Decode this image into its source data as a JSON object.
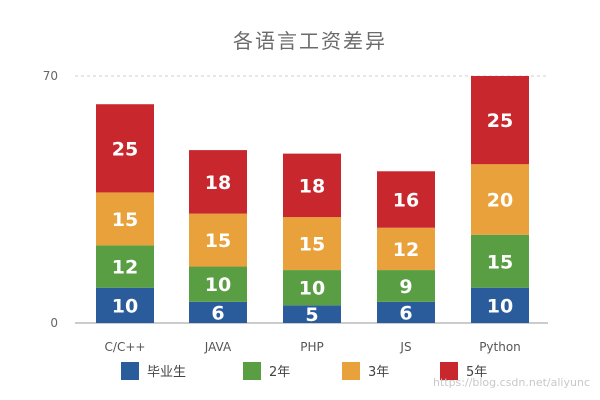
{
  "chart_data": {
    "type": "bar",
    "stacked": true,
    "title": "各语言工资差异",
    "categories": [
      "C/C++",
      "JAVA",
      "PHP",
      "JS",
      "Python"
    ],
    "series": [
      {
        "name": "毕业生",
        "color": "#2a5b9b",
        "values": [
          10,
          6,
          5,
          6,
          10
        ]
      },
      {
        "name": "2年",
        "color": "#5a9e44",
        "values": [
          12,
          10,
          10,
          9,
          15
        ]
      },
      {
        "name": "3年",
        "color": "#e9a23b",
        "values": [
          15,
          15,
          15,
          12,
          20
        ]
      },
      {
        "name": "5年",
        "color": "#c9272e",
        "values": [
          25,
          18,
          18,
          16,
          25
        ]
      }
    ],
    "ylim": [
      0,
      70
    ],
    "yticks": [
      "0",
      "70"
    ],
    "grid": true,
    "legend": "bottom",
    "xlabel": "",
    "ylabel": ""
  },
  "watermark": "https://blog.csdn.net/aliyunc"
}
